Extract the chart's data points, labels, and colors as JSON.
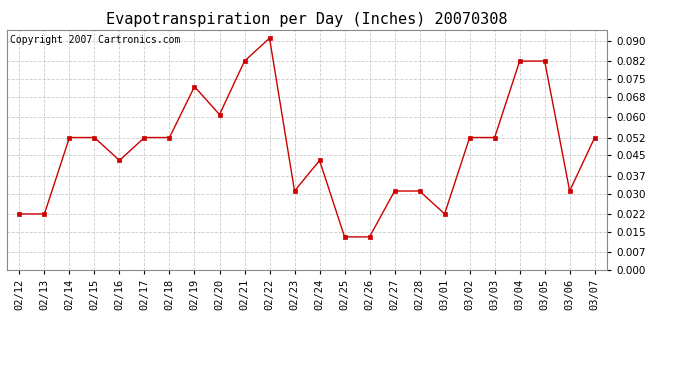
{
  "title": "Evapotranspiration per Day (Inches) 20070308",
  "copyright_text": "Copyright 2007 Cartronics.com",
  "dates": [
    "02/12",
    "02/13",
    "02/14",
    "02/15",
    "02/16",
    "02/17",
    "02/18",
    "02/19",
    "02/20",
    "02/21",
    "02/22",
    "02/23",
    "02/24",
    "02/25",
    "02/26",
    "02/27",
    "02/28",
    "03/01",
    "03/02",
    "03/03",
    "03/04",
    "03/05",
    "03/06",
    "03/07"
  ],
  "values": [
    0.022,
    0.022,
    0.052,
    0.052,
    0.043,
    0.052,
    0.052,
    0.072,
    0.061,
    0.082,
    0.091,
    0.031,
    0.043,
    0.013,
    0.013,
    0.031,
    0.031,
    0.022,
    0.052,
    0.052,
    0.082,
    0.082,
    0.031,
    0.052
  ],
  "line_color": "#cc0000",
  "marker": "s",
  "marker_size": 2.5,
  "ylim": [
    0.0,
    0.0942
  ],
  "yticks": [
    0.0,
    0.007,
    0.015,
    0.022,
    0.03,
    0.037,
    0.045,
    0.052,
    0.06,
    0.068,
    0.075,
    0.082,
    0.09
  ],
  "background_color": "#ffffff",
  "grid_color": "#cccccc",
  "title_fontsize": 11,
  "copyright_fontsize": 7,
  "tick_fontsize": 7.5
}
